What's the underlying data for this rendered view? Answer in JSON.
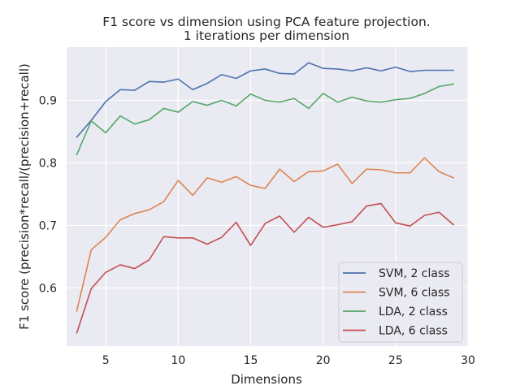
{
  "chart_data": {
    "type": "line",
    "title_lines": [
      "F1 score vs dimension using PCA feature projection.",
      "1 iterations per dimension"
    ],
    "xlabel": "Dimensions",
    "ylabel": "F1 score (precision*recall/(precision+recall)",
    "xlim": [
      2.3,
      30.0
    ],
    "ylim": [
      0.507,
      0.985
    ],
    "x_ticks": [
      5,
      10,
      15,
      20,
      25,
      30
    ],
    "y_ticks": [
      0.6,
      0.7,
      0.8,
      0.9
    ],
    "y_tick_labels": [
      "0.6",
      "0.7",
      "0.8",
      "0.9"
    ],
    "grid": true,
    "legend_position": "lower right",
    "background": "#eaeaf2",
    "x": [
      3,
      4,
      5,
      6,
      7,
      8,
      9,
      10,
      11,
      12,
      13,
      14,
      15,
      16,
      17,
      18,
      19,
      20,
      21,
      22,
      23,
      24,
      25,
      26,
      27,
      28,
      29
    ],
    "series": [
      {
        "name": "SVM, 2 class",
        "color": "#4c72b0",
        "values": [
          0.841,
          0.868,
          0.898,
          0.917,
          0.916,
          0.93,
          0.929,
          0.934,
          0.917,
          0.927,
          0.941,
          0.935,
          0.947,
          0.95,
          0.943,
          0.942,
          0.96,
          0.951,
          0.95,
          0.947,
          0.952,
          0.947,
          0.953,
          0.946,
          0.948,
          0.948,
          0.948
        ]
      },
      {
        "name": "SVM, 6 class",
        "color": "#dd8452",
        "values": [
          0.563,
          0.661,
          0.681,
          0.709,
          0.719,
          0.725,
          0.738,
          0.772,
          0.748,
          0.776,
          0.769,
          0.778,
          0.764,
          0.759,
          0.79,
          0.77,
          0.786,
          0.787,
          0.798,
          0.767,
          0.79,
          0.789,
          0.784,
          0.784,
          0.808,
          0.786,
          0.776
        ]
      },
      {
        "name": "LDA, 2 class",
        "color": "#55a868",
        "values": [
          0.813,
          0.867,
          0.848,
          0.875,
          0.862,
          0.869,
          0.887,
          0.881,
          0.898,
          0.892,
          0.9,
          0.891,
          0.91,
          0.9,
          0.897,
          0.903,
          0.887,
          0.911,
          0.897,
          0.905,
          0.899,
          0.897,
          0.901,
          0.903,
          0.911,
          0.922,
          0.926
        ]
      },
      {
        "name": "LDA, 6 class",
        "color": "#c44e52",
        "values": [
          0.528,
          0.599,
          0.625,
          0.637,
          0.631,
          0.645,
          0.682,
          0.68,
          0.68,
          0.67,
          0.681,
          0.705,
          0.668,
          0.703,
          0.715,
          0.689,
          0.713,
          0.697,
          0.701,
          0.706,
          0.731,
          0.735,
          0.704,
          0.699,
          0.716,
          0.721,
          0.701
        ]
      }
    ]
  }
}
